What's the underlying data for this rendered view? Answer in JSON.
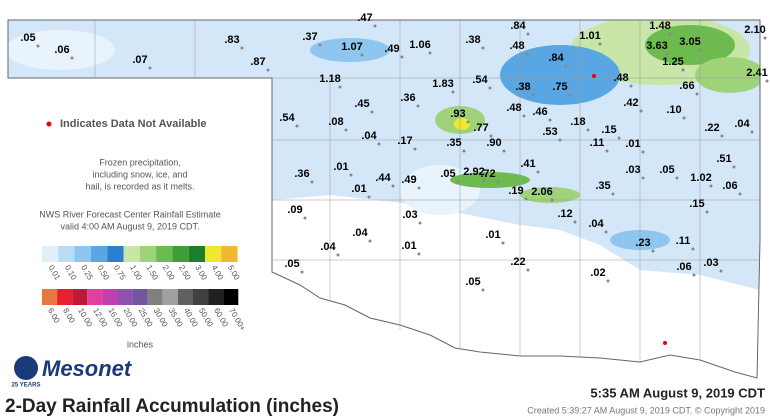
{
  "title": "2-Day Rainfall Accumulation (inches)",
  "timestamp": "5:35 AM August 9, 2019 CDT",
  "created": "Created 5:39:27 AM August 9, 2019 CDT. © Copyright 2019",
  "brand": "Mesonet",
  "brand_badge": "25 YEARS",
  "not_available_note": "Indicates Data Not Available",
  "frozen_note": [
    "Frozen precipitation,",
    "including snow, ice, and",
    "hail, is recorded as it melts."
  ],
  "estimate_note": [
    "NWS River Forecast Center Rainfall Estimate",
    "valid 4:00 AM August 9, 2019 CDT."
  ],
  "legend": {
    "unit": "inches",
    "row1": [
      {
        "label": "0.01",
        "color": "#e0f0fb"
      },
      {
        "label": "0.10",
        "color": "#b9dcf5"
      },
      {
        "label": "0.25",
        "color": "#8ec6ef"
      },
      {
        "label": "0.50",
        "color": "#5aa6e2"
      },
      {
        "label": "0.75",
        "color": "#2a7fd0"
      },
      {
        "label": "1.00",
        "color": "#c8e6a8"
      },
      {
        "label": "1.50",
        "color": "#9fd37a"
      },
      {
        "label": "2.00",
        "color": "#6dbb4e"
      },
      {
        "label": "2.50",
        "color": "#3e9f3a"
      },
      {
        "label": "3.00",
        "color": "#1e7d2f"
      },
      {
        "label": "4.00",
        "color": "#f0e830"
      },
      {
        "label": "5.00",
        "color": "#f0b830"
      }
    ],
    "row2": [
      {
        "label": "6.00",
        "color": "#e87840"
      },
      {
        "label": "8.00",
        "color": "#e82030"
      },
      {
        "label": "10.00",
        "color": "#c01838"
      },
      {
        "label": "12.00",
        "color": "#e040a0"
      },
      {
        "label": "16.00",
        "color": "#c040b0"
      },
      {
        "label": "20.00",
        "color": "#9050b0"
      },
      {
        "label": "25.00",
        "color": "#7058a0"
      },
      {
        "label": "30.00",
        "color": "#808080"
      },
      {
        "label": "35.00",
        "color": "#a0a0a0"
      },
      {
        "label": "40.00",
        "color": "#606060"
      },
      {
        "label": "50.00",
        "color": "#404040"
      },
      {
        "label": "60.00",
        "color": "#202020"
      },
      {
        "label": "70.00+",
        "color": "#000000"
      }
    ]
  },
  "station_values": [
    ".47",
    ".05",
    ".06",
    ".07",
    ".83",
    ".87",
    ".37",
    "1.07",
    ".49",
    "1.06",
    ".38",
    ".84",
    ".48",
    "1.01",
    "1.48",
    "2.10",
    "3.63",
    "3.05",
    ".84",
    "1.25",
    "2.41",
    ".66",
    "1.18",
    "1.83",
    ".54",
    ".38",
    ".75",
    ".48",
    ".36",
    ".45",
    ".42",
    ".10",
    ".54",
    ".08",
    ".93",
    ".48",
    ".46",
    ".18",
    ".22",
    ".04",
    ".77",
    ".53",
    ".15",
    ".04",
    ".17",
    ".35",
    ".90",
    ".11",
    ".01",
    ".51",
    ".36",
    ".01",
    ".44",
    ".49",
    ".05",
    "2.92",
    ".72",
    ".41",
    ".03",
    ".05",
    "1.02",
    ".06",
    ".01",
    ".19",
    "2.06",
    ".35",
    ".15",
    ".09",
    ".03",
    ".12",
    ".04",
    ".04",
    ".01",
    ".23",
    ".11",
    ".04",
    ".01",
    ".22",
    ".05",
    ".02",
    ".06",
    ".03",
    ".05"
  ]
}
